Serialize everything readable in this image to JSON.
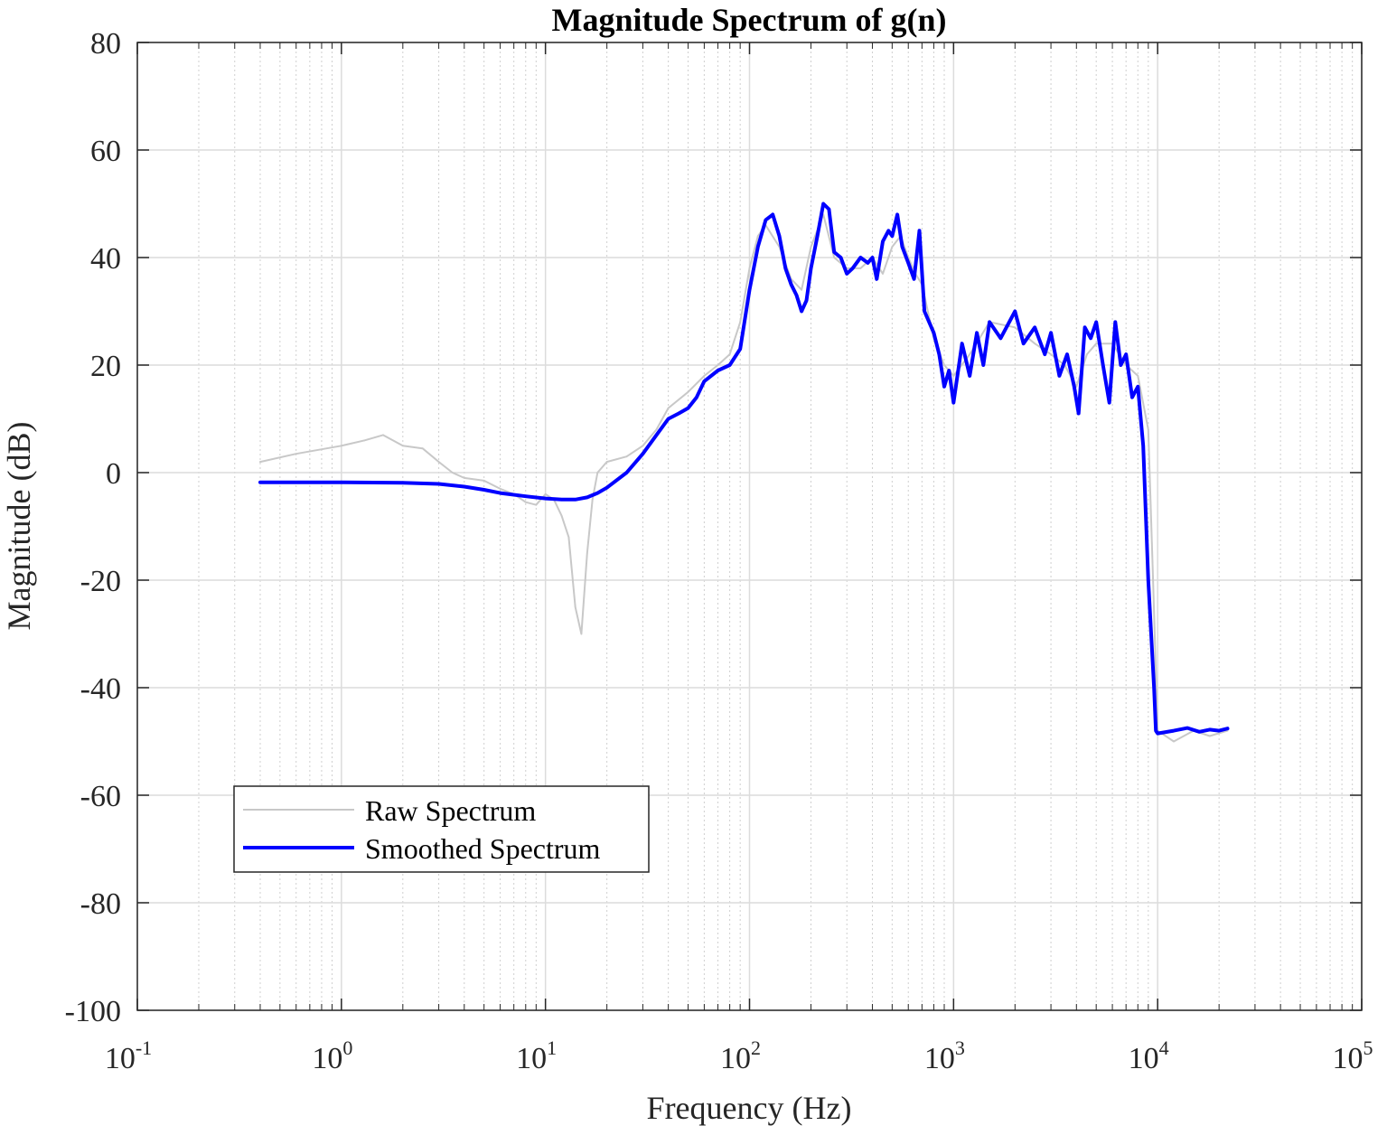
{
  "chart_data": {
    "type": "line",
    "title": "Magnitude Spectrum of g(n)",
    "xlabel": "Frequency (Hz)",
    "ylabel": "Magnitude (dB)",
    "xscale": "log",
    "xlim": [
      0.1,
      100000
    ],
    "ylim": [
      -100,
      80
    ],
    "x_ticks": [
      {
        "base": "10",
        "exp": "-1",
        "value": 0.1
      },
      {
        "base": "10",
        "exp": "0",
        "value": 1
      },
      {
        "base": "10",
        "exp": "1",
        "value": 10
      },
      {
        "base": "10",
        "exp": "2",
        "value": 100
      },
      {
        "base": "10",
        "exp": "3",
        "value": 1000
      },
      {
        "base": "10",
        "exp": "4",
        "value": 10000
      },
      {
        "base": "10",
        "exp": "5",
        "value": 100000
      }
    ],
    "y_ticks": [
      "80",
      "60",
      "40",
      "20",
      "0",
      "-20",
      "-40",
      "-60",
      "-80",
      "-100"
    ],
    "grid": true,
    "legend_position": "bottom-left",
    "series": [
      {
        "name": "Raw Spectrum",
        "color": "#c8c8c8",
        "x": [
          0.4,
          0.6,
          1.0,
          1.3,
          1.6,
          2.0,
          2.5,
          3.0,
          3.5,
          4.0,
          5.0,
          6.0,
          7.0,
          8.0,
          9.0,
          10.0,
          11.0,
          12.0,
          13.0,
          14.0,
          15.0,
          16.0,
          17.0,
          18.0,
          20.0,
          25.0,
          30.0,
          35.0,
          40.0,
          50.0,
          60.0,
          70.0,
          80.0,
          90.0,
          100.0,
          110.0,
          120.0,
          140.0,
          160.0,
          180.0,
          200.0,
          230.0,
          260.0,
          300.0,
          350.0,
          400.0,
          450.0,
          500.0,
          550.0,
          600.0,
          650.0,
          700.0,
          800.0,
          900.0,
          1000.0,
          1200.0,
          1500.0,
          2000.0,
          2500.0,
          3000.0,
          3500.0,
          4000.0,
          4500.0,
          5000.0,
          6000.0,
          7000.0,
          8000.0,
          9000.0,
          9500.0,
          10000.0,
          12000.0,
          15000.0,
          18000.0,
          22000.0
        ],
        "y": [
          2.0,
          3.5,
          5.0,
          6.0,
          7.0,
          5.0,
          4.5,
          2.0,
          0.0,
          -1.0,
          -1.5,
          -3.0,
          -4.0,
          -5.5,
          -6.0,
          -4.0,
          -5.0,
          -8.0,
          -12.0,
          -25.0,
          -30.0,
          -15.0,
          -5.0,
          0.0,
          2.0,
          3.0,
          5.0,
          8.0,
          12.0,
          15.0,
          18.0,
          20.0,
          22.0,
          28.0,
          38.0,
          44.0,
          46.0,
          42.0,
          36.0,
          34.0,
          42.0,
          48.0,
          40.0,
          38.0,
          38.0,
          40.0,
          37.0,
          42.0,
          44.0,
          40.0,
          37.0,
          35.0,
          25.0,
          20.0,
          18.0,
          22.0,
          28.0,
          27.0,
          24.0,
          22.0,
          20.0,
          16.0,
          22.0,
          24.0,
          24.0,
          20.0,
          18.0,
          8.0,
          -20.0,
          -48.0,
          -50.0,
          -48.0,
          -49.0,
          -48.0
        ]
      },
      {
        "name": "Smoothed Spectrum",
        "color": "#0000ff",
        "x": [
          0.4,
          0.6,
          1.0,
          2.0,
          3.0,
          4.0,
          5.0,
          6.0,
          8.0,
          10.0,
          12.0,
          14.0,
          16.0,
          18.0,
          20.0,
          25.0,
          30.0,
          35.0,
          40.0,
          45.0,
          50.0,
          55.0,
          60.0,
          70.0,
          80.0,
          90.0,
          100.0,
          110.0,
          120.0,
          130.0,
          140.0,
          150.0,
          160.0,
          170.0,
          180.0,
          190.0,
          200.0,
          215.0,
          230.0,
          245.0,
          260.0,
          280.0,
          300.0,
          320.0,
          350.0,
          380.0,
          400.0,
          420.0,
          450.0,
          480.0,
          500.0,
          530.0,
          560.0,
          600.0,
          640.0,
          680.0,
          720.0,
          800.0,
          850.0,
          900.0,
          950.0,
          1000.0,
          1100.0,
          1200.0,
          1300.0,
          1400.0,
          1500.0,
          1700.0,
          2000.0,
          2200.0,
          2500.0,
          2800.0,
          3000.0,
          3300.0,
          3600.0,
          3900.0,
          4100.0,
          4400.0,
          4700.0,
          5000.0,
          5400.0,
          5800.0,
          6200.0,
          6600.0,
          7000.0,
          7500.0,
          8000.0,
          8500.0,
          9000.0,
          9300.0,
          9600.0,
          9800.0,
          10000.0,
          12000.0,
          14000.0,
          16000.0,
          18000.0,
          20000.0,
          22000.0
        ],
        "y": [
          -1.8,
          -1.8,
          -1.8,
          -1.9,
          -2.1,
          -2.6,
          -3.2,
          -3.8,
          -4.4,
          -4.8,
          -5.0,
          -5.0,
          -4.6,
          -3.8,
          -2.8,
          0.0,
          3.5,
          7.0,
          10.0,
          11.0,
          12.0,
          14.0,
          17.0,
          19.0,
          20.0,
          23.0,
          34.0,
          42.0,
          47.0,
          48.0,
          44.0,
          38.0,
          35.0,
          33.0,
          30.0,
          32.0,
          38.0,
          44.0,
          50.0,
          49.0,
          41.0,
          40.0,
          37.0,
          38.0,
          40.0,
          39.0,
          40.0,
          36.0,
          43.0,
          45.0,
          44.0,
          48.0,
          42.0,
          39.0,
          36.0,
          45.0,
          30.0,
          26.0,
          22.0,
          16.0,
          19.0,
          13.0,
          24.0,
          18.0,
          26.0,
          20.0,
          28.0,
          25.0,
          30.0,
          24.0,
          27.0,
          22.0,
          26.0,
          18.0,
          22.0,
          16.0,
          11.0,
          27.0,
          25.0,
          28.0,
          20.0,
          13.0,
          28.0,
          20.0,
          22.0,
          14.0,
          16.0,
          5.0,
          -20.0,
          -30.0,
          -40.0,
          -48.0,
          -48.5,
          -48.0,
          -47.5,
          -48.2,
          -47.8,
          -48.0,
          -47.6
        ]
      }
    ]
  }
}
